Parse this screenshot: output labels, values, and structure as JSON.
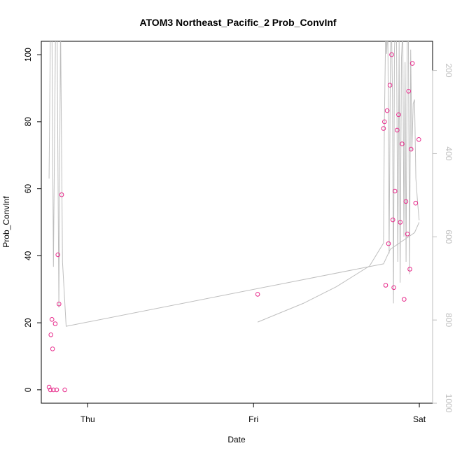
{
  "chart_data": {
    "type": "scatter",
    "title": "ATOM3 Northeast_Pacific_2 Prob_ConvInf",
    "xlabel": "Date",
    "ylabel": "Prob_ConvInf",
    "x_ticks": [
      "Thu",
      "Fri",
      "Sat"
    ],
    "x_tick_values": [
      1.0,
      2.0,
      3.0
    ],
    "xlim": [
      0.72,
      3.08
    ],
    "ylim": [
      -4,
      104
    ],
    "y_ticks": [
      0,
      20,
      40,
      60,
      80,
      100
    ],
    "y2_ticks": [
      200,
      400,
      600,
      800,
      1000
    ],
    "y2_range_at_bottom_top": [
      1000,
      130
    ],
    "grid": false,
    "colors": {
      "points": "#e7298a",
      "line": "#bebebe",
      "axes": "#000000",
      "secondary_axis": "#bebebe"
    },
    "points": [
      [
        0.767,
        0.8
      ],
      [
        0.775,
        0.0
      ],
      [
        0.778,
        16.4
      ],
      [
        0.784,
        21.0
      ],
      [
        0.788,
        12.2
      ],
      [
        0.793,
        0.0
      ],
      [
        0.804,
        19.7
      ],
      [
        0.813,
        0.0
      ],
      [
        0.82,
        40.3
      ],
      [
        0.827,
        25.6
      ],
      [
        0.843,
        58.2
      ],
      [
        0.862,
        0.0
      ],
      [
        2.025,
        28.5
      ],
      [
        2.784,
        78.0
      ],
      [
        2.79,
        80.0
      ],
      [
        2.797,
        31.2
      ],
      [
        2.806,
        83.3
      ],
      [
        2.814,
        43.6
      ],
      [
        2.823,
        90.9
      ],
      [
        2.833,
        100.0
      ],
      [
        2.84,
        50.7
      ],
      [
        2.846,
        30.5
      ],
      [
        2.853,
        59.3
      ],
      [
        2.866,
        77.5
      ],
      [
        2.875,
        82.1
      ],
      [
        2.885,
        50.0
      ],
      [
        2.896,
        73.4
      ],
      [
        2.908,
        27.0
      ],
      [
        2.919,
        56.2
      ],
      [
        2.928,
        46.5
      ],
      [
        2.935,
        89.1
      ],
      [
        2.943,
        36.0
      ],
      [
        2.95,
        71.8
      ],
      [
        2.958,
        97.4
      ],
      [
        2.978,
        55.7
      ],
      [
        2.997,
        74.7
      ]
    ],
    "line_series": [
      {
        "x": [
          0.767,
          0.775,
          0.784,
          0.793,
          0.806,
          0.815,
          0.826,
          0.836,
          0.848,
          0.87,
          2.784,
          2.825,
          2.971,
          2.999
        ],
        "y2": [
          460,
          95,
          100,
          672,
          95,
          85,
          770,
          90,
          660,
          815,
          665,
          630,
          590,
          565
        ]
      },
      {
        "x": [
          2.025,
          2.3,
          2.5,
          2.7,
          2.784,
          2.789,
          2.797,
          2.803,
          2.81,
          2.818,
          2.826,
          2.832,
          2.838,
          2.844,
          2.85,
          2.856,
          2.862,
          2.87,
          2.878,
          2.884,
          2.892,
          2.9,
          2.907,
          2.914,
          2.92,
          2.927,
          2.934,
          2.941,
          2.948,
          2.955,
          2.963,
          2.971,
          2.979,
          2.99,
          2.999
        ],
        "y2": [
          805,
          760,
          720,
          670,
          615,
          330,
          100,
          160,
          85,
          640,
          150,
          95,
          260,
          760,
          150,
          90,
          100,
          660,
          130,
          710,
          170,
          100,
          600,
          180,
          660,
          130,
          100,
          690,
          150,
          395,
          280,
          270,
          460,
          520,
          560
        ]
      }
    ]
  }
}
